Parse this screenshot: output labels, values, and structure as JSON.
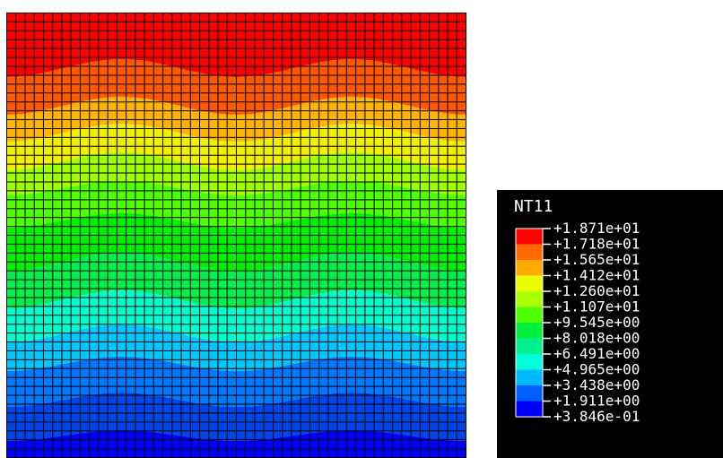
{
  "chart_data": {
    "type": "heatmap",
    "variable": "NT11",
    "mesh_divisions": {
      "x": 50,
      "y": 50
    },
    "contour_bands_from_top": [
      "#ff0000",
      "#ff5a00",
      "#ffb400",
      "#f0f000",
      "#a0ff00",
      "#50ff00",
      "#00f000",
      "#00f050",
      "#00ffd0",
      "#00c8ff",
      "#0078ff",
      "#0046e6",
      "#0000ff"
    ],
    "legend": {
      "title": "NT11",
      "levels": [
        "+1.871e+01",
        "+1.718e+01",
        "+1.565e+01",
        "+1.412e+01",
        "+1.260e+01",
        "+1.107e+01",
        "+9.545e+00",
        "+8.018e+00",
        "+6.491e+00",
        "+4.965e+00",
        "+3.438e+00",
        "+1.911e+00",
        "+3.846e-01"
      ],
      "colors": [
        "#ff0000",
        "#ff6a00",
        "#ffaa00",
        "#eaff00",
        "#aaff00",
        "#4cff00",
        "#00f040",
        "#00f090",
        "#00ffd8",
        "#00b8ff",
        "#0060ff",
        "#0000ff"
      ]
    }
  }
}
